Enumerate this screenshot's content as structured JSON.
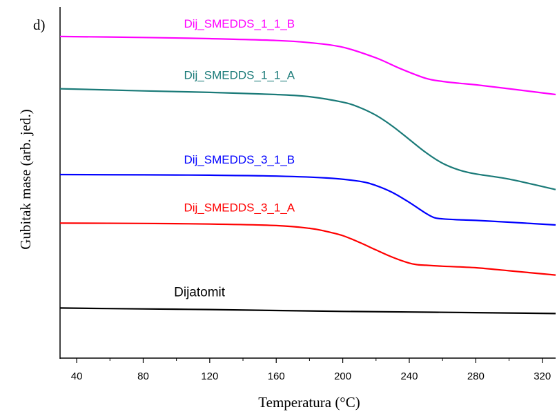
{
  "chart_data": {
    "type": "line",
    "panel_label": "d)",
    "xlabel": "Temperatura (°C)",
    "ylabel": "Gubitak mase (arb. jed.)",
    "xlim": [
      30,
      328
    ],
    "ylim": [
      -5,
      110
    ],
    "x_ticks": [
      40,
      80,
      120,
      160,
      200,
      240,
      280,
      320
    ],
    "y_ticks_shown": false,
    "grid": false,
    "legend": "inline labels above each curve",
    "series": [
      {
        "name": "Dij_SMEDDS_1_1_B",
        "color": "#ff00ff",
        "x": [
          30,
          80,
          120,
          160,
          180,
          200,
          220,
          235,
          250,
          260,
          270,
          280,
          300,
          328
        ],
        "y": [
          100.3,
          100.0,
          99.6,
          99.0,
          98.3,
          96.8,
          93.3,
          89.7,
          86.6,
          85.6,
          85.0,
          84.5,
          83.2,
          81.3
        ]
      },
      {
        "name": "Dij_SMEDDS_1_1_A",
        "color": "#1a7a78",
        "x": [
          30,
          80,
          120,
          160,
          180,
          200,
          210,
          220,
          230,
          240,
          250,
          260,
          270,
          280,
          300,
          328
        ],
        "y": [
          83.2,
          82.5,
          82.0,
          81.3,
          80.6,
          78.8,
          77.1,
          74.5,
          70.9,
          66.6,
          62.3,
          58.8,
          56.6,
          55.3,
          53.6,
          50.2
        ]
      },
      {
        "name": "Dij_SMEDDS_3_1_B",
        "color": "#0000ff",
        "x": [
          30,
          80,
          120,
          160,
          190,
          210,
          220,
          230,
          240,
          250,
          255,
          260,
          270,
          280,
          300,
          328
        ],
        "y": [
          55.1,
          55.0,
          54.9,
          54.6,
          54.0,
          52.9,
          51.5,
          49.2,
          46.0,
          42.4,
          41.0,
          40.6,
          40.3,
          40.1,
          39.5,
          38.6
        ]
      },
      {
        "name": "Dij_SMEDDS_3_1_A",
        "color": "#ff0000",
        "x": [
          30,
          80,
          120,
          160,
          180,
          190,
          200,
          210,
          220,
          230,
          240,
          245,
          250,
          260,
          280,
          300,
          328
        ],
        "y": [
          39.2,
          39.1,
          38.9,
          38.4,
          37.5,
          36.5,
          35.1,
          32.9,
          30.4,
          28.0,
          26.1,
          25.6,
          25.4,
          25.1,
          24.6,
          23.6,
          22.2
        ]
      },
      {
        "name": "Dijatomit",
        "color": "#000000",
        "x": [
          30,
          80,
          120,
          160,
          200,
          240,
          280,
          328
        ],
        "y": [
          11.4,
          11.1,
          10.9,
          10.6,
          10.3,
          10.1,
          9.9,
          9.6
        ]
      }
    ]
  }
}
